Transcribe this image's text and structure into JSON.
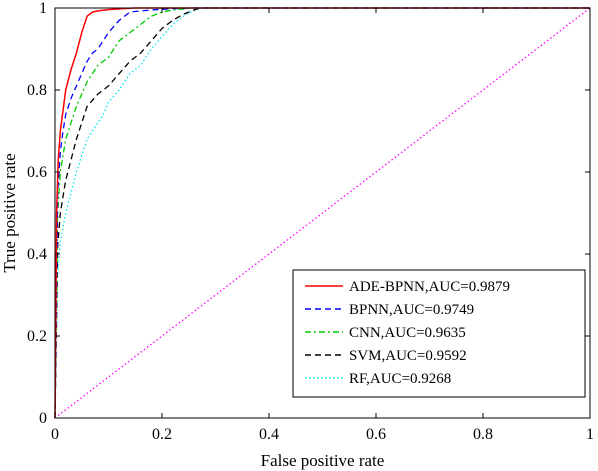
{
  "chart_data": {
    "type": "line",
    "xlabel": "False positive rate",
    "ylabel": "True positive rate",
    "xlim": [
      0,
      1
    ],
    "ylim": [
      0,
      1
    ],
    "xticks": [
      0,
      0.2,
      0.4,
      0.6,
      0.8,
      1
    ],
    "yticks": [
      0,
      0.2,
      0.4,
      0.6,
      0.8,
      1
    ],
    "xtick_labels": [
      "0",
      "0.2",
      "0.4",
      "0.6",
      "0.8",
      "1"
    ],
    "ytick_labels": [
      "0",
      "0.2",
      "0.4",
      "0.6",
      "0.8",
      "1"
    ],
    "grid": false,
    "legend_position": "bottom-right",
    "series": [
      {
        "name": "ADE-BPNN,AUC=0.9879",
        "color": "#ff0000",
        "dash": "solid",
        "x": [
          0,
          0.003,
          0.006,
          0.01,
          0.015,
          0.02,
          0.03,
          0.04,
          0.05,
          0.06,
          0.07,
          0.08,
          0.1,
          0.12,
          0.15,
          0.2,
          0.3,
          1
        ],
        "y": [
          0,
          0.5,
          0.63,
          0.7,
          0.75,
          0.8,
          0.85,
          0.89,
          0.94,
          0.98,
          0.99,
          0.993,
          0.996,
          0.998,
          1,
          1,
          1,
          1
        ]
      },
      {
        "name": "BPNN,AUC=0.9749",
        "color": "#0000ff",
        "dash": "dashed",
        "x": [
          0,
          0.005,
          0.01,
          0.015,
          0.02,
          0.03,
          0.04,
          0.05,
          0.06,
          0.07,
          0.08,
          0.09,
          0.1,
          0.12,
          0.14,
          0.16,
          0.2,
          0.25,
          1
        ],
        "y": [
          0,
          0.55,
          0.65,
          0.7,
          0.74,
          0.78,
          0.81,
          0.84,
          0.87,
          0.89,
          0.9,
          0.92,
          0.94,
          0.97,
          0.99,
          0.993,
          0.997,
          1,
          1
        ]
      },
      {
        "name": "CNN,AUC=0.9635",
        "color": "#00cc00",
        "dash": "dashdot",
        "x": [
          0,
          0.005,
          0.01,
          0.02,
          0.03,
          0.04,
          0.05,
          0.06,
          0.07,
          0.08,
          0.1,
          0.12,
          0.14,
          0.16,
          0.18,
          0.2,
          0.22,
          0.26,
          1
        ],
        "y": [
          0,
          0.5,
          0.6,
          0.68,
          0.72,
          0.76,
          0.79,
          0.82,
          0.84,
          0.86,
          0.88,
          0.92,
          0.94,
          0.96,
          0.98,
          0.99,
          0.995,
          1,
          1
        ]
      },
      {
        "name": "SVM,AUC=0.9592",
        "color": "#000000",
        "dash": "dashed",
        "x": [
          0,
          0.005,
          0.01,
          0.02,
          0.03,
          0.04,
          0.05,
          0.06,
          0.08,
          0.1,
          0.12,
          0.14,
          0.16,
          0.18,
          0.2,
          0.22,
          0.24,
          0.27,
          1
        ],
        "y": [
          0,
          0.42,
          0.5,
          0.58,
          0.63,
          0.68,
          0.72,
          0.76,
          0.79,
          0.81,
          0.84,
          0.87,
          0.89,
          0.92,
          0.95,
          0.97,
          0.985,
          1,
          1
        ]
      },
      {
        "name": "RF,AUC=0.9268",
        "color": "#00e5ee",
        "dash": "dotted",
        "x": [
          0,
          0.005,
          0.01,
          0.02,
          0.03,
          0.04,
          0.05,
          0.06,
          0.07,
          0.08,
          0.09,
          0.1,
          0.12,
          0.14,
          0.16,
          0.18,
          0.2,
          0.22,
          0.24,
          0.26,
          0.28,
          1
        ],
        "y": [
          0,
          0.35,
          0.43,
          0.5,
          0.55,
          0.6,
          0.64,
          0.68,
          0.7,
          0.72,
          0.74,
          0.77,
          0.8,
          0.84,
          0.86,
          0.9,
          0.93,
          0.96,
          0.98,
          0.995,
          1,
          1
        ]
      },
      {
        "name": "",
        "color": "#ff00ff",
        "dash": "dotted",
        "x": [
          0,
          1
        ],
        "y": [
          0,
          1
        ]
      }
    ]
  }
}
